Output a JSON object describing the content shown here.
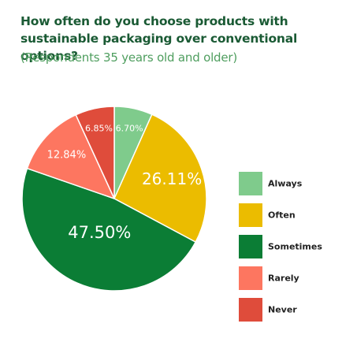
{
  "chart_data": {
    "type": "pie",
    "title": "How often do you choose products with sustainable packaging over conventional options?",
    "subtitle": "(Respondents 35 years old and older)",
    "legend_position": "right",
    "slices": [
      {
        "label": "Always",
        "value": 6.7,
        "display": "6.70%",
        "color": "#7fcb8c"
      },
      {
        "label": "Often",
        "value": 26.11,
        "display": "26.11%",
        "color": "#ebbc00"
      },
      {
        "label": "Sometimes",
        "value": 47.5,
        "display": "47.50%",
        "color": "#0b7d35"
      },
      {
        "label": "Rarely",
        "value": 12.84,
        "display": "12.84%",
        "color": "#fd7660"
      },
      {
        "label": "Never",
        "value": 6.85,
        "display": "6.85%",
        "color": "#df4c3b"
      }
    ]
  }
}
